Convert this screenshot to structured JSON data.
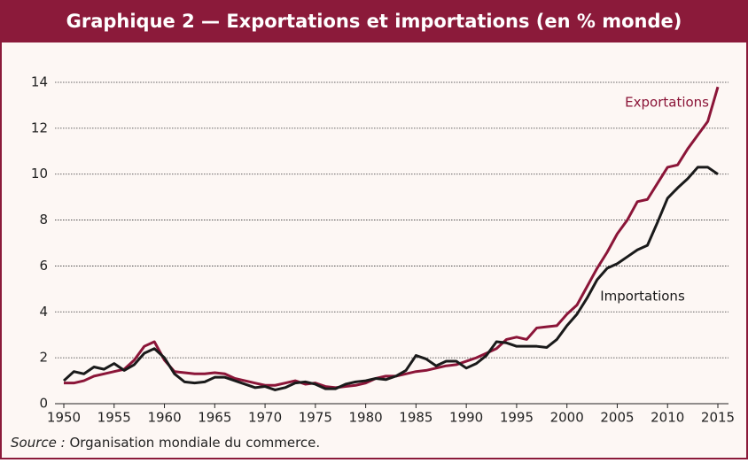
{
  "chart_data": {
    "type": "line",
    "title": "Graphique 2 — Exportations et importations (en % monde)",
    "x": [
      1950,
      1951,
      1952,
      1953,
      1954,
      1955,
      1956,
      1957,
      1958,
      1959,
      1960,
      1961,
      1962,
      1963,
      1964,
      1965,
      1966,
      1967,
      1968,
      1969,
      1970,
      1971,
      1972,
      1973,
      1974,
      1975,
      1976,
      1977,
      1978,
      1979,
      1980,
      1981,
      1982,
      1983,
      1984,
      1985,
      1986,
      1987,
      1988,
      1989,
      1990,
      1991,
      1992,
      1993,
      1994,
      1995,
      1996,
      1997,
      1998,
      1999,
      2000,
      2001,
      2002,
      2003,
      2004,
      2005,
      2006,
      2007,
      2008,
      2009,
      2010,
      2011,
      2012,
      2013,
      2014,
      2015
    ],
    "series": [
      {
        "name": "Exportations",
        "color": "#8b1538",
        "values": [
          0.9,
          0.9,
          1.0,
          1.2,
          1.3,
          1.4,
          1.5,
          1.9,
          2.5,
          2.7,
          1.9,
          1.4,
          1.35,
          1.3,
          1.3,
          1.35,
          1.3,
          1.1,
          1.0,
          0.9,
          0.8,
          0.8,
          0.9,
          1.0,
          0.85,
          0.9,
          0.75,
          0.7,
          0.75,
          0.8,
          0.9,
          1.1,
          1.2,
          1.2,
          1.3,
          1.4,
          1.45,
          1.55,
          1.65,
          1.7,
          1.85,
          2.0,
          2.2,
          2.4,
          2.8,
          2.9,
          2.8,
          3.3,
          3.35,
          3.4,
          3.9,
          4.3,
          5.1,
          5.9,
          6.6,
          7.4,
          8.0,
          8.8,
          8.9,
          9.6,
          10.3,
          10.4,
          11.1,
          11.7,
          12.3,
          13.8
        ]
      },
      {
        "name": "Importations",
        "color": "#1a1a1a",
        "values": [
          1.0,
          1.4,
          1.3,
          1.6,
          1.5,
          1.75,
          1.45,
          1.7,
          2.2,
          2.4,
          2.0,
          1.3,
          0.95,
          0.9,
          0.95,
          1.15,
          1.15,
          1.0,
          0.85,
          0.7,
          0.75,
          0.6,
          0.7,
          0.9,
          0.95,
          0.85,
          0.65,
          0.65,
          0.85,
          0.95,
          1.0,
          1.1,
          1.05,
          1.2,
          1.45,
          2.1,
          1.95,
          1.65,
          1.85,
          1.85,
          1.55,
          1.75,
          2.1,
          2.7,
          2.65,
          2.5,
          2.5,
          2.5,
          2.45,
          2.8,
          3.4,
          3.9,
          4.6,
          5.4,
          5.9,
          6.1,
          6.4,
          6.7,
          6.9,
          7.9,
          8.95,
          9.4,
          9.8,
          10.3,
          10.3,
          10.0
        ]
      }
    ],
    "xlim": [
      1950,
      2015
    ],
    "xticks": [
      1950,
      1955,
      1960,
      1965,
      1970,
      1975,
      1980,
      1985,
      1990,
      1995,
      2000,
      2005,
      2010,
      2015
    ],
    "ylim": [
      0,
      14
    ],
    "yticks": [
      0,
      2,
      4,
      6,
      8,
      10,
      12,
      14
    ],
    "grid": true,
    "source_label": "Source :",
    "source": "Organisation mondiale du commerce."
  }
}
